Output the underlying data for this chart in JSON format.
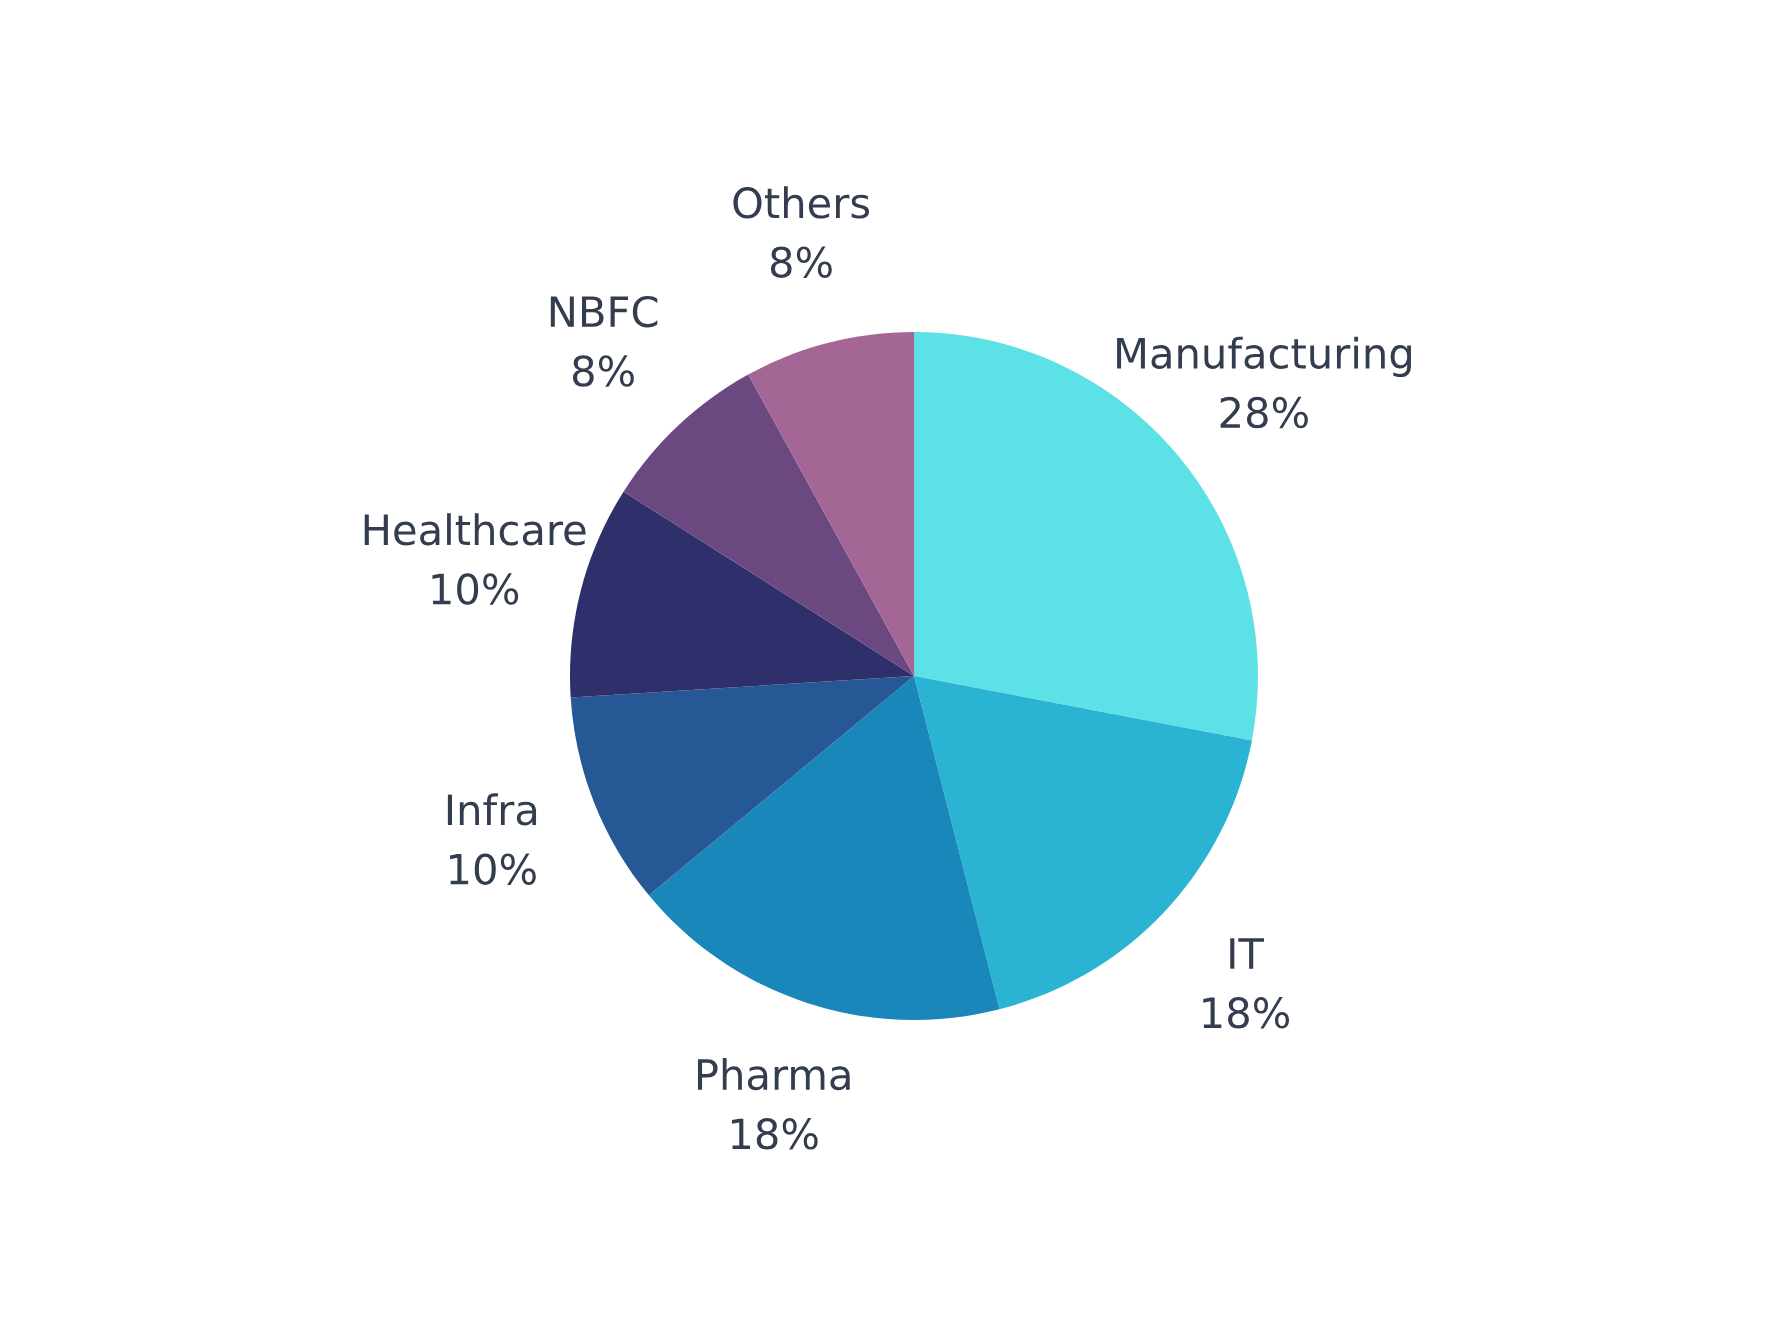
{
  "chart_data": {
    "type": "pie",
    "categories": [
      "Manufacturing",
      "IT",
      "Pharma",
      "Infra",
      "Healthcare",
      "NBFC",
      "Others"
    ],
    "values": [
      28,
      18,
      18,
      10,
      10,
      8,
      8
    ],
    "value_labels": [
      "28%",
      "18%",
      "18%",
      "10%",
      "10%",
      "8%",
      "8%"
    ],
    "colors": [
      "#5ce1e6",
      "#2bb3d4",
      "#1a87bb",
      "#265895",
      "#2e2f6b",
      "#6b4880",
      "#a46694"
    ],
    "legend": false
  }
}
